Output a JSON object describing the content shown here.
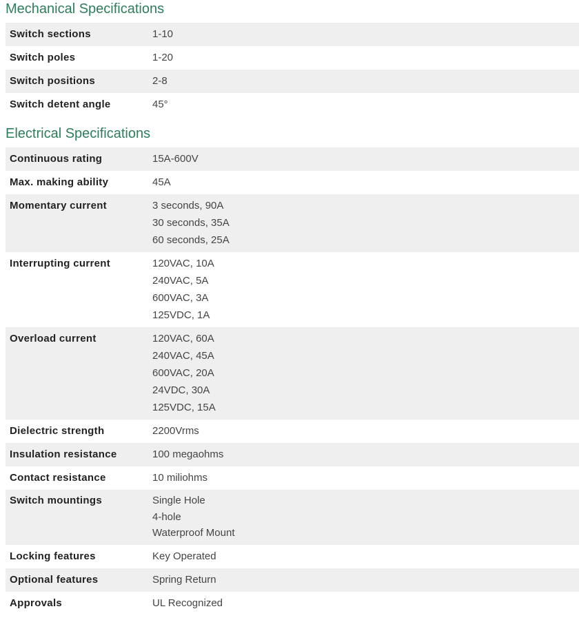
{
  "mechanical": {
    "title": "Mechanical Specifications",
    "rows": [
      {
        "label": "Switch sections",
        "values": [
          "1-10"
        ]
      },
      {
        "label": "Switch poles",
        "values": [
          "1-20"
        ]
      },
      {
        "label": "Switch positions",
        "values": [
          "2-8"
        ]
      },
      {
        "label": "Switch detent angle",
        "values": [
          "45°"
        ]
      }
    ]
  },
  "electrical": {
    "title": "Electrical Specifications",
    "rows": [
      {
        "label": "Continuous rating",
        "values": [
          "15A-600V"
        ]
      },
      {
        "label": "Max. making ability",
        "values": [
          "45A"
        ]
      },
      {
        "label": "Momentary current",
        "values": [
          "3 seconds, 90A",
          "30 seconds, 35A",
          "60 seconds, 25A"
        ]
      },
      {
        "label": "Interrupting current",
        "values": [
          "120VAC, 10A",
          "240VAC, 5A",
          "600VAC, 3A",
          "125VDC, 1A"
        ]
      },
      {
        "label": "Overload current",
        "values": [
          "120VAC, 60A",
          "240VAC, 45A",
          "600VAC, 20A",
          "24VDC, 30A",
          "125VDC, 15A"
        ]
      },
      {
        "label": "Dielectric strength",
        "values": [
          "2200Vrms"
        ]
      },
      {
        "label": "Insulation resistance",
        "values": [
          "100 megaohms"
        ]
      },
      {
        "label": "Contact resistance",
        "values": [
          "10 miliohms"
        ]
      },
      {
        "label": "Switch mountings",
        "values": [
          "Single Hole",
          "4-hole",
          "Waterproof Mount"
        ]
      },
      {
        "label": "Locking features",
        "values": [
          "Key Operated"
        ]
      },
      {
        "label": "Optional features",
        "values": [
          "Spring Return"
        ]
      },
      {
        "label": "Approvals",
        "values": [
          "UL Recognized"
        ]
      }
    ]
  },
  "colors": {
    "heading": "#2e7d5b",
    "row_shade": "#efefef"
  }
}
